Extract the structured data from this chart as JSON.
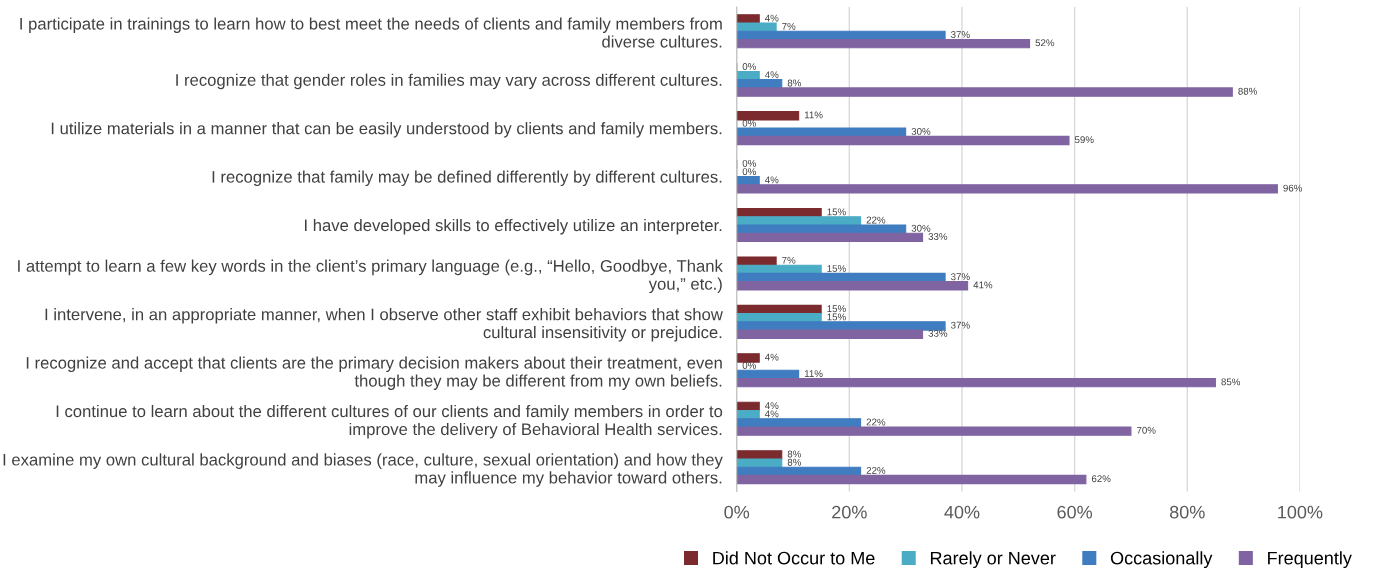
{
  "chart_data": {
    "type": "bar",
    "orientation": "horizontal",
    "categories": [
      "I participate in trainings to learn how to best meet the needs of clients and family members from\ndiverse cultures.",
      "I recognize that gender roles in families may vary across different cultures.",
      "I utilize materials in a manner that can be easily understood by clients and family members.",
      "I recognize that family may be defined differently by different cultures.",
      "I have developed skills to effectively utilize an interpreter.",
      "I attempt to learn a few key words in the client’s primary language (e.g., “Hello, Goodbye, Thank\nyou,” etc.)",
      "I intervene, in an appropriate manner, when I observe other staff exhibit behaviors that show\ncultural insensitivity or prejudice.",
      "I recognize and accept that clients are the primary decision makers about their treatment, even\nthough they may be different from my own beliefs.",
      "I continue to learn about the different cultures of our clients and family members in order to\nimprove the delivery of Behavioral Health services.",
      "I examine my own cultural background and biases (race, culture, sexual orientation) and how they\nmay influence my behavior toward others."
    ],
    "series": [
      {
        "name": "Did Not Occur to Me",
        "color": "#7b2b2e",
        "values": [
          4,
          0,
          11,
          0,
          15,
          7,
          15,
          4,
          4,
          8
        ],
        "value_labels": [
          "4%",
          "0%",
          "11%",
          "0%",
          "15%",
          "7%",
          "15%",
          "4%",
          "4%",
          "8%"
        ]
      },
      {
        "name": "Rarely or Never",
        "color": "#4bacc6",
        "values": [
          7,
          4,
          0,
          0,
          22,
          15,
          15,
          0,
          4,
          8
        ],
        "value_labels": [
          "7%",
          "4%",
          "0%",
          "0%",
          "22%",
          "15%",
          "15%",
          "0%",
          "4%",
          "8%"
        ]
      },
      {
        "name": "Occasionally",
        "color": "#3f7cc0",
        "values": [
          37,
          8,
          30,
          4,
          30,
          37,
          37,
          11,
          22,
          22
        ],
        "value_labels": [
          "37%",
          "8%",
          "30%",
          "4%",
          "30%",
          "37%",
          "37%",
          "11%",
          "22%",
          "22%"
        ]
      },
      {
        "name": "Frequently",
        "color": "#8064a2",
        "values": [
          52,
          88,
          59,
          96,
          33,
          41,
          33,
          85,
          70,
          62
        ],
        "value_labels": [
          "52%",
          "88%",
          "59%",
          "96%",
          "33%",
          "41%",
          "33%",
          "85%",
          "70%",
          "62%"
        ]
      }
    ],
    "xlim": [
      0,
      100
    ],
    "xticks": [
      {
        "value": 0,
        "label": "0%"
      },
      {
        "value": 20,
        "label": "20%"
      },
      {
        "value": 40,
        "label": "40%"
      },
      {
        "value": 60,
        "label": "60%"
      },
      {
        "value": 80,
        "label": "80%"
      },
      {
        "value": 100,
        "label": "100%"
      }
    ],
    "grid": "x",
    "legend": "bottom"
  }
}
